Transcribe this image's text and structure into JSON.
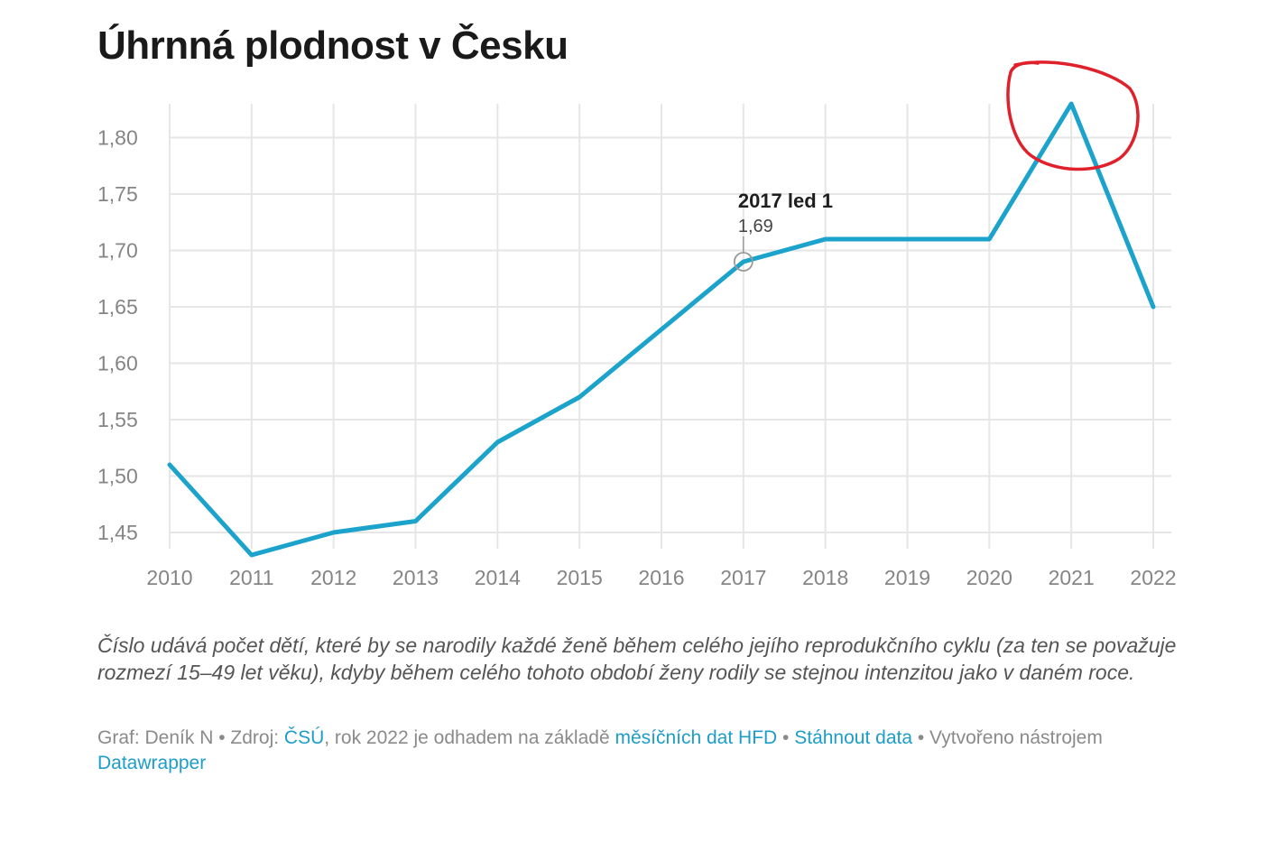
{
  "chart_title": "Úhrnná plodnost v Česku",
  "note": "Číslo udává počet dětí, které by se narodily každé ženě během celého jejího reprodukčního cyklu (za ten se považuje rozmezí 15–49 let věku), kdyby během celého tohoto období ženy rodily se stejnou intenzitou jako v daném roce.",
  "footer": {
    "prefix": "Graf: Deník N • Zdroj: ",
    "source_link": "ČSÚ",
    "mid_text": ", rok 2022 je odhadem na základě ",
    "hfd_link": "měsíčních dat HFD",
    "sep": " • ",
    "download_link": "Stáhnout data",
    "made_with": " • Vytvořeno nástrojem ",
    "tool_link": "Datawrapper"
  },
  "tooltip": {
    "title": "2017 led 1",
    "value": "1,69"
  },
  "colors": {
    "line": "#1ba3cc",
    "grid": "#e6e6e6",
    "annotation_circle": "#e0202a"
  },
  "chart_data": {
    "type": "line",
    "title": "Úhrnná plodnost v Česku",
    "xlabel": "",
    "ylabel": "",
    "x": [
      "2010",
      "2011",
      "2012",
      "2013",
      "2014",
      "2015",
      "2016",
      "2017",
      "2018",
      "2019",
      "2020",
      "2021",
      "2022"
    ],
    "series": [
      {
        "values": [
          1.51,
          1.43,
          1.45,
          1.46,
          1.53,
          1.57,
          1.63,
          1.69,
          1.71,
          1.71,
          1.71,
          1.83,
          1.65
        ]
      }
    ],
    "y_ticks": [
      "1,45",
      "1,50",
      "1,55",
      "1,60",
      "1,65",
      "1,70",
      "1,75",
      "1,80"
    ],
    "y_tick_values": [
      1.45,
      1.5,
      1.55,
      1.6,
      1.65,
      1.7,
      1.75,
      1.8
    ],
    "ylim": [
      1.43,
      1.83
    ],
    "grid": true,
    "highlight_point": "2017",
    "annotation": "hand-drawn red circle around 2021 peak"
  }
}
